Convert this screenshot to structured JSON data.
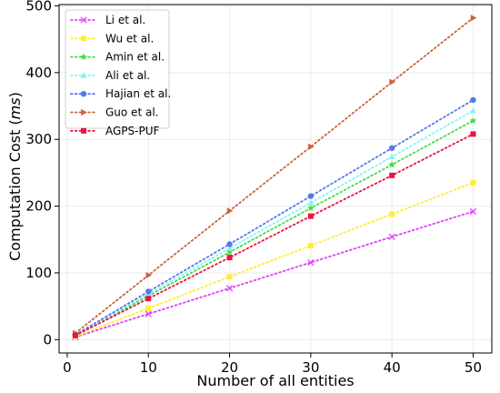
{
  "chart_data": {
    "type": "line",
    "xlabel": "Number of all entities",
    "ylabel_prefix": "Computation Cost (",
    "ylabel_unit": "ms",
    "ylabel_suffix": ")",
    "xlim": [
      -1,
      52.3
    ],
    "ylim": [
      -20,
      502
    ],
    "xticks": [
      0,
      10,
      20,
      30,
      40,
      50
    ],
    "yticks": [
      0,
      100,
      200,
      300,
      400,
      500
    ],
    "grid": true,
    "legend_position": "top-left",
    "x": [
      1,
      10,
      20,
      30,
      40,
      50
    ],
    "series": [
      {
        "name": "Li et al.",
        "color": "#e040fb",
        "marker": "x",
        "values": [
          3.8,
          38.5,
          77,
          115.5,
          154,
          192
        ]
      },
      {
        "name": "Wu et al.",
        "color": "#ffee33",
        "marker": "square",
        "values": [
          4.7,
          47,
          94,
          141,
          188,
          235
        ]
      },
      {
        "name": "Amin et al.",
        "color": "#44dd44",
        "marker": "star",
        "values": [
          6.6,
          65.5,
          131,
          197,
          262,
          328
        ]
      },
      {
        "name": "Ali et al.",
        "color": "#88f4f4",
        "marker": "triangle-up",
        "values": [
          6.9,
          68.5,
          137,
          205,
          274,
          343
        ]
      },
      {
        "name": "Hajian et al.",
        "color": "#5577ee",
        "marker": "circle",
        "values": [
          7.2,
          72,
          143,
          215,
          287,
          359
        ]
      },
      {
        "name": "Guo et al.",
        "color": "#c8643c",
        "marker": "triangle-right",
        "values": [
          9.6,
          96.5,
          193,
          289,
          386,
          482
        ]
      },
      {
        "name": "AGPS-PUF",
        "color": "#ee1144",
        "marker": "square",
        "values": [
          6.2,
          61.5,
          123,
          185,
          246,
          308
        ]
      }
    ]
  }
}
